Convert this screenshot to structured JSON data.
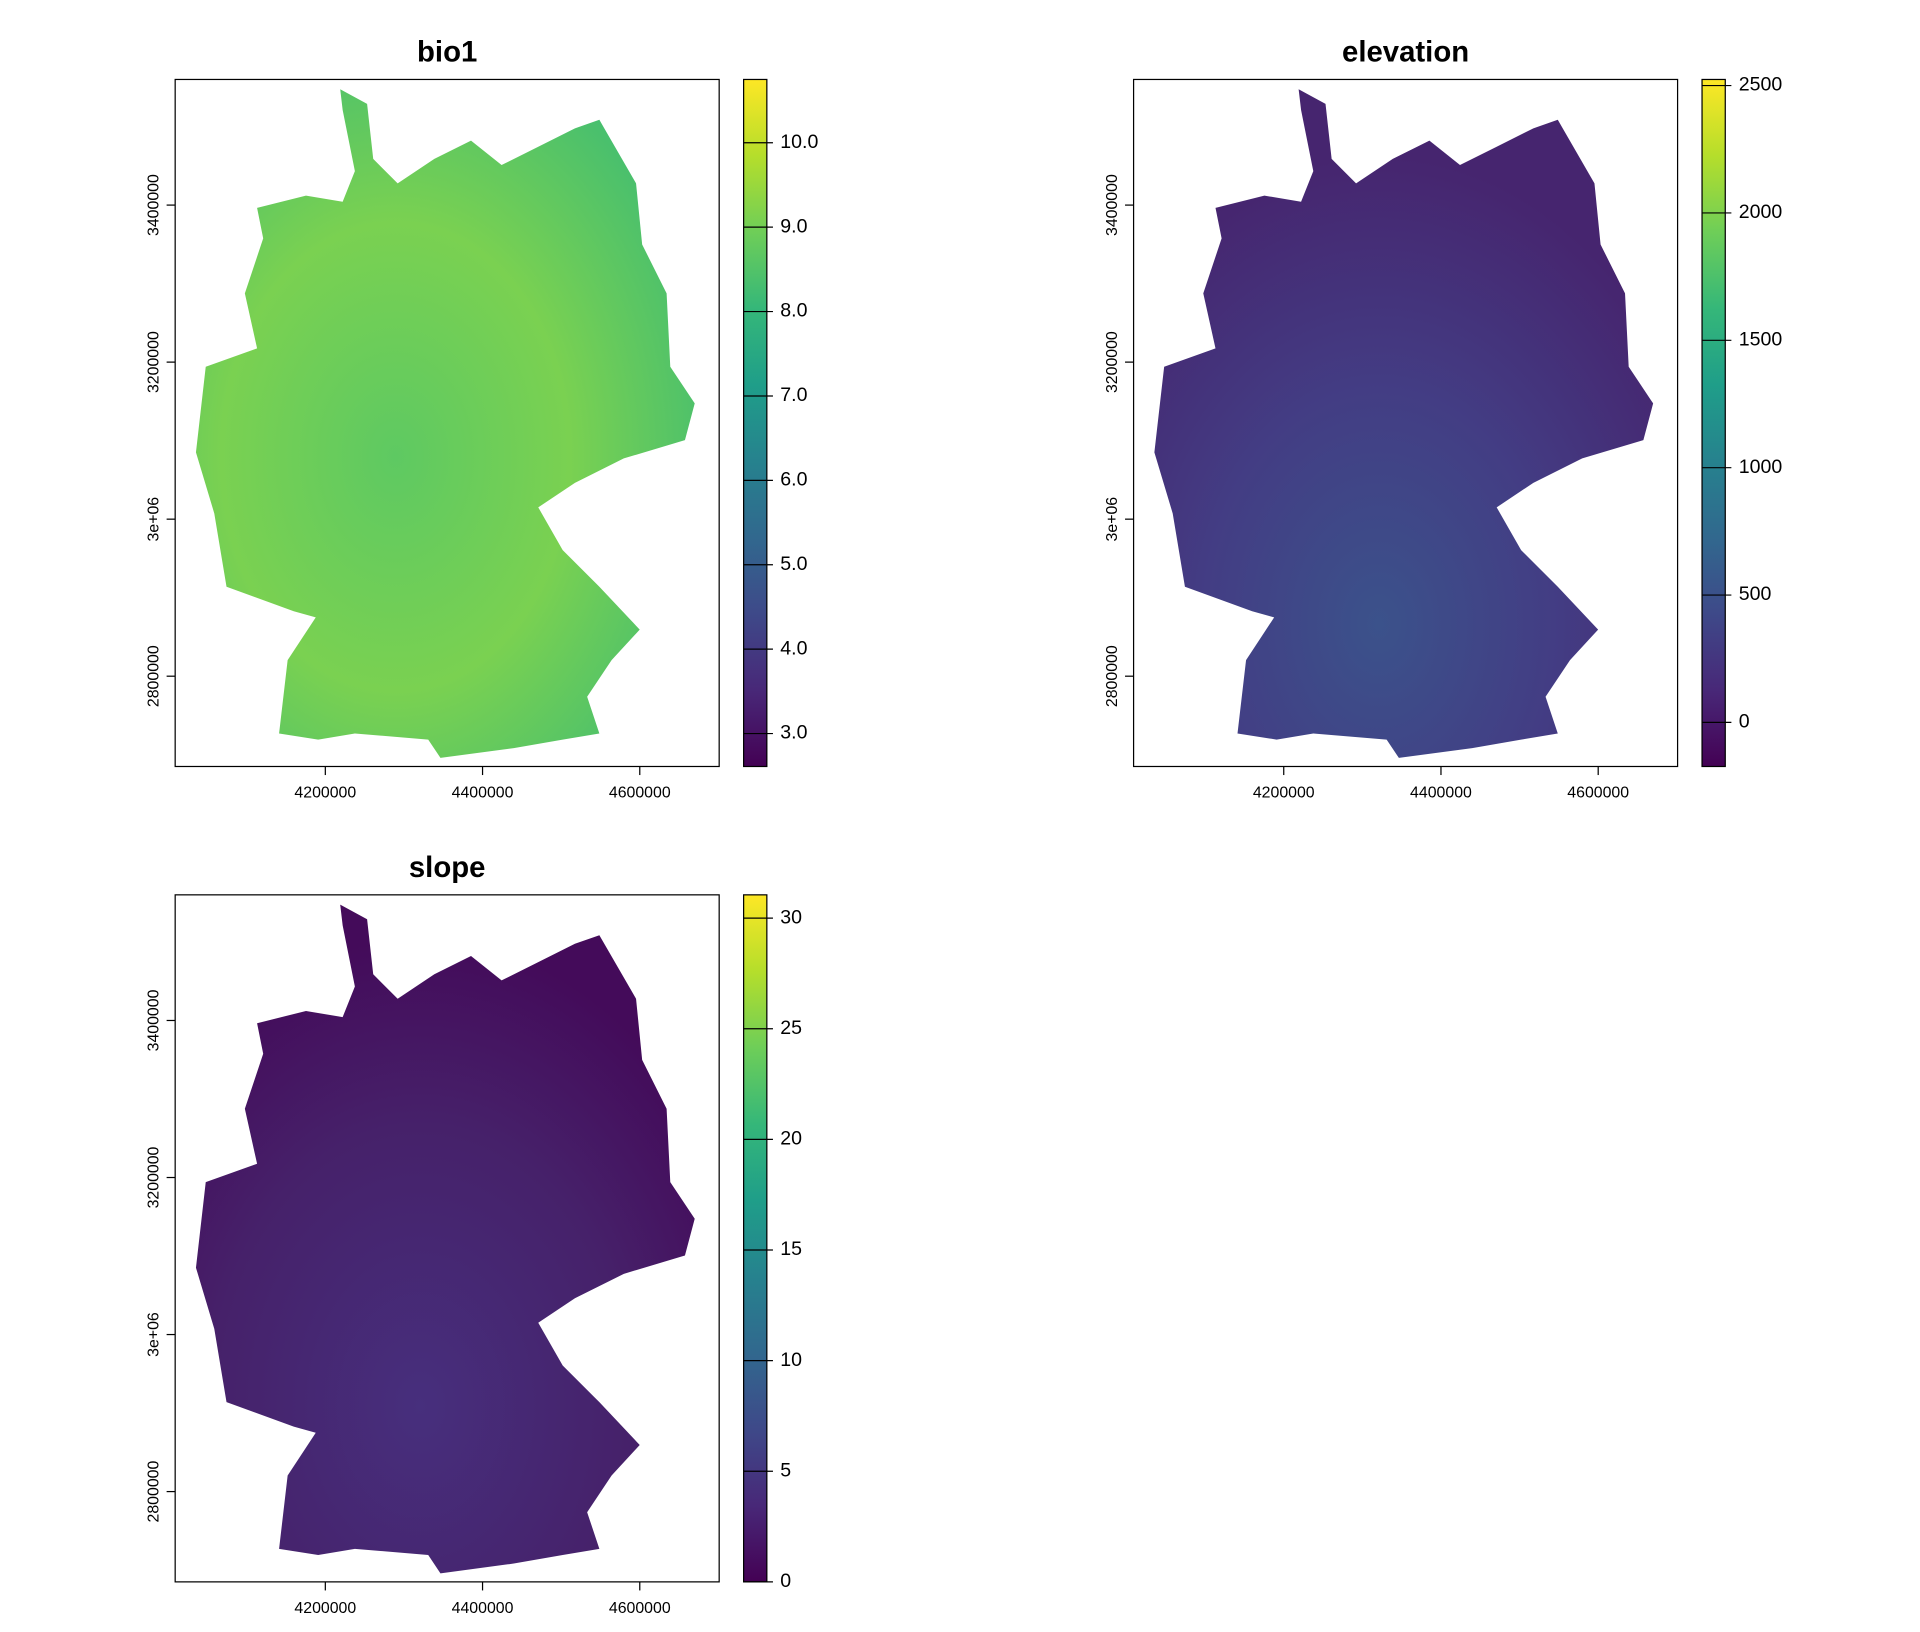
{
  "chart_data": [
    {
      "type": "raster",
      "title": "bio1",
      "xlim": [
        4009000,
        4701000
      ],
      "ylim": [
        2685000,
        3560000
      ],
      "xticks": [
        4200000,
        4400000,
        4600000
      ],
      "yticks": [
        2800000,
        {
          "value": 3000000,
          "label": "3e+06"
        },
        3200000,
        3400000
      ],
      "zlim": [
        2.61,
        10.75
      ],
      "zticks": [
        {
          "value": 3,
          "label": "3.0"
        },
        {
          "value": 4,
          "label": "4.0"
        },
        {
          "value": 5,
          "label": "5.0"
        },
        {
          "value": 6,
          "label": "6.0"
        },
        {
          "value": 7,
          "label": "7.0"
        },
        {
          "value": 8,
          "label": "8.0"
        },
        {
          "value": 9,
          "label": "9.0"
        },
        {
          "value": 10,
          "label": "10.0"
        }
      ],
      "colors": [
        "#440154",
        "#482878",
        "#3e4989",
        "#31688e",
        "#26828e",
        "#1f9e89",
        "#35b779",
        "#6ece58",
        "#b5de2b",
        "#fde725"
      ]
    },
    {
      "type": "raster",
      "title": "elevation",
      "xlim": [
        4009000,
        4701000
      ],
      "ylim": [
        2685000,
        3560000
      ],
      "xticks": [
        4200000,
        4400000,
        4600000
      ],
      "yticks": [
        2800000,
        {
          "value": 3000000,
          "label": "3e+06"
        },
        3200000,
        3400000
      ],
      "zlim": [
        -173,
        2524
      ],
      "zticks": [
        0,
        500,
        1000,
        1500,
        2000,
        2500
      ],
      "colors": [
        "#440154",
        "#482878",
        "#3e4989",
        "#31688e",
        "#26828e",
        "#1f9e89",
        "#35b779",
        "#6ece58",
        "#b5de2b",
        "#fde725"
      ]
    },
    {
      "type": "raster",
      "title": "slope",
      "xlim": [
        4009000,
        4701000
      ],
      "ylim": [
        2685000,
        3560000
      ],
      "xticks": [
        4200000,
        4400000,
        4600000
      ],
      "yticks": [
        2800000,
        {
          "value": 3000000,
          "label": "3e+06"
        },
        3200000,
        3400000
      ],
      "zlim": [
        0,
        31.05
      ],
      "zticks": [
        0,
        5,
        10,
        15,
        20,
        25,
        30
      ],
      "colors": [
        "#440154",
        "#482878",
        "#3e4989",
        "#31688e",
        "#26828e",
        "#1f9e89",
        "#35b779",
        "#6ece58",
        "#b5de2b",
        "#fde725"
      ]
    }
  ]
}
